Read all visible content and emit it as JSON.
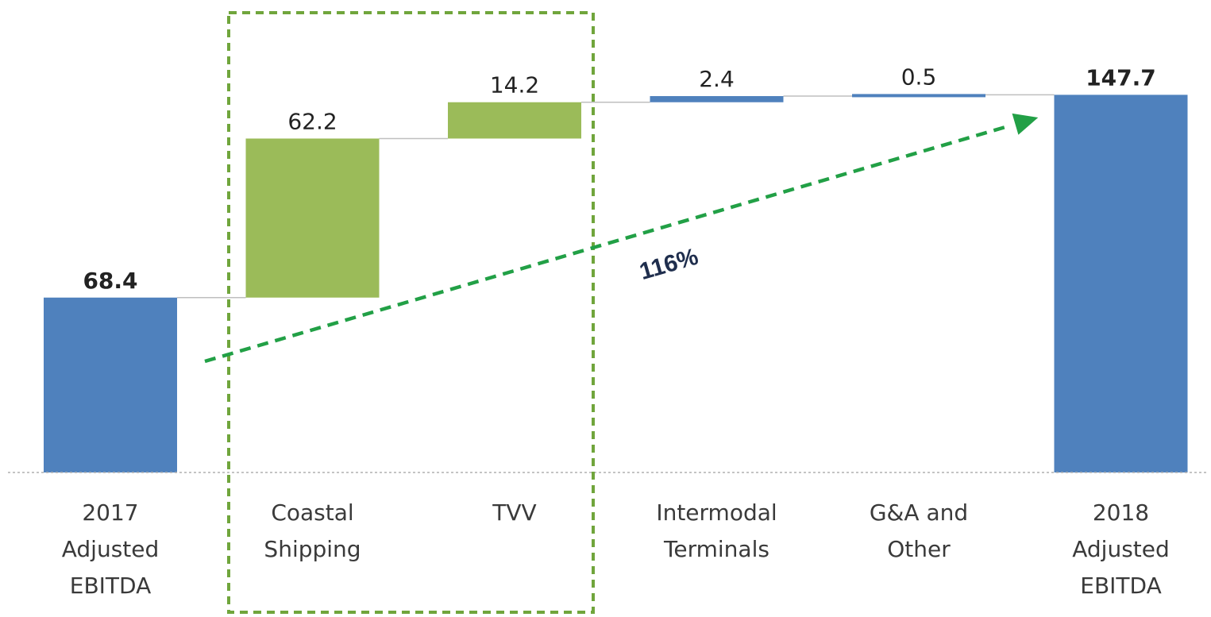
{
  "chart_data": {
    "type": "waterfall",
    "categories": [
      [
        "2017",
        "Adjusted",
        "EBITDA"
      ],
      [
        "Coastal",
        "Shipping"
      ],
      [
        "TVV"
      ],
      [
        "Intermodal",
        "Terminals"
      ],
      [
        "G&A and",
        "Other"
      ],
      [
        "2018",
        "Adjusted",
        "EBITDA"
      ]
    ],
    "values": [
      68.4,
      62.2,
      14.2,
      2.4,
      0.5,
      147.7
    ],
    "value_labels": [
      "68.4",
      "62.2",
      "14.2",
      "2.4",
      "0.5",
      "147.7"
    ],
    "kinds": [
      "total",
      "delta",
      "delta",
      "delta",
      "delta",
      "total"
    ],
    "bold_labels": [
      true,
      false,
      false,
      false,
      false,
      true
    ],
    "colors": {
      "total": "#4f81bd",
      "highlight": "#9bbb59",
      "delta": "#4f81bd",
      "connector": "#bfbfbf",
      "highlight_box": "#70a53c",
      "growth_arrow": "#22a046"
    },
    "highlighted_categories": [
      "Coastal Shipping",
      "TVV"
    ],
    "growth_label": "116%",
    "ylim": [
      0,
      150
    ]
  }
}
